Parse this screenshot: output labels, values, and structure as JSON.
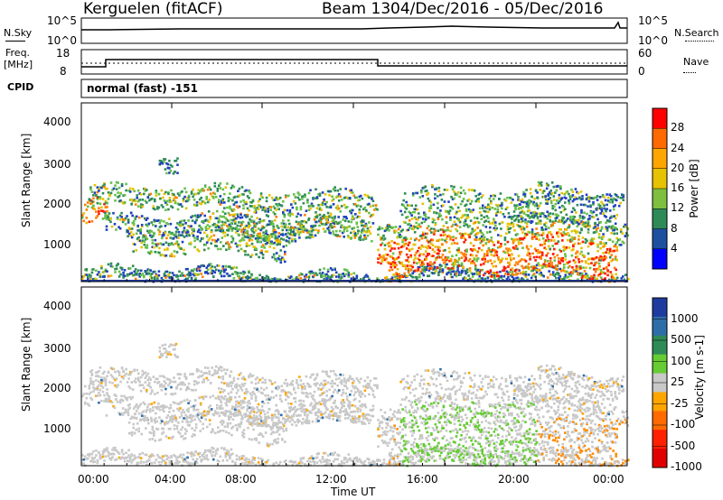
{
  "header": {
    "station": "Kerguelen (fitACF)",
    "beam": "Beam 13",
    "date_range": "04/Dec/2016 - 05/Dec/2016"
  },
  "top_panels": {
    "nsky_label": "N.Sky",
    "nsky_ticks": [
      "10^5",
      "10^0"
    ],
    "nsearch_label": "N.Search",
    "nsearch_ticks": [
      "10^5",
      "10^0"
    ],
    "freq_label_1": "Freq.",
    "freq_label_2": "[MHz]",
    "freq_ticks": [
      "18",
      "8"
    ],
    "nave_label": "Nave",
    "nave_ticks": [
      "60",
      "0"
    ],
    "cpid_label": "CPID",
    "cpid_value": "normal (fast) -151"
  },
  "chart_data": [
    {
      "type": "heatmap",
      "name": "power-panel",
      "ylabel": "Slant Range [km]",
      "yticks": [
        "4000",
        "3000",
        "2000",
        "1000"
      ],
      "ylim": [
        180,
        4600
      ],
      "colorbar_label": "Power [dB]",
      "colorbar_ticks": [
        "28",
        "24",
        "20",
        "16",
        "12",
        "8",
        "4"
      ],
      "colorbar_colors": [
        "#ff0000",
        "#ff6a00",
        "#ffa500",
        "#e6c200",
        "#7fbf3f",
        "#2e8b57",
        "#1e50a0",
        "#0000ff"
      ]
    },
    {
      "type": "heatmap",
      "name": "velocity-panel",
      "ylabel": "Slant Range [km]",
      "yticks": [
        "4000",
        "3000",
        "2000",
        "1000"
      ],
      "ylim": [
        180,
        4600
      ],
      "colorbar_label": "Velocity [m s-1]",
      "colorbar_ticks": [
        "1000",
        "500",
        "100",
        "25",
        "-25",
        "-100",
        "-500",
        "-1000"
      ],
      "colorbar_colors": [
        "#1e3ca0",
        "#2e6ea8",
        "#2e8b57",
        "#66cc33",
        "#c8c8c8",
        "#ffa500",
        "#ff6a00",
        "#ff2000",
        "#e00000"
      ]
    }
  ],
  "xaxis": {
    "label": "Time UT",
    "ticks": [
      "00:00",
      "04:00",
      "08:00",
      "12:00",
      "16:00",
      "20:00",
      "00:00"
    ]
  }
}
